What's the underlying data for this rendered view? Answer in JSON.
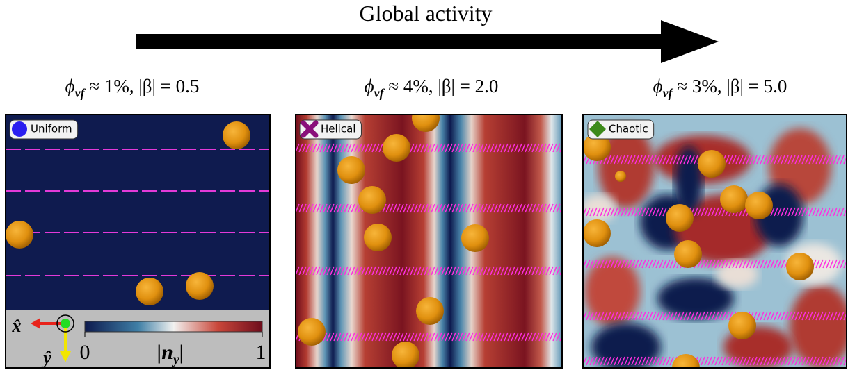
{
  "title": "Global activity",
  "panels": [
    {
      "header": {
        "symbol": "ϕ",
        "sub": "vf",
        "rest": " ≈ 1%, |β| = 0.5"
      },
      "label": "Uniform"
    },
    {
      "header": {
        "symbol": "ϕ",
        "sub": "vf",
        "rest": " ≈ 4%, |β| = 2.0"
      },
      "label": "Helical"
    },
    {
      "header": {
        "symbol": "ϕ",
        "sub": "vf",
        "rest": " ≈ 3%, |β| = 5.0"
      },
      "label": "Chaotic"
    }
  ],
  "colorbar": {
    "min": "0",
    "label": {
      "main": "|n",
      "sub": "y",
      "end": "|"
    },
    "max": "1"
  },
  "axes": {
    "x": "x̂",
    "y": "ŷ"
  }
}
